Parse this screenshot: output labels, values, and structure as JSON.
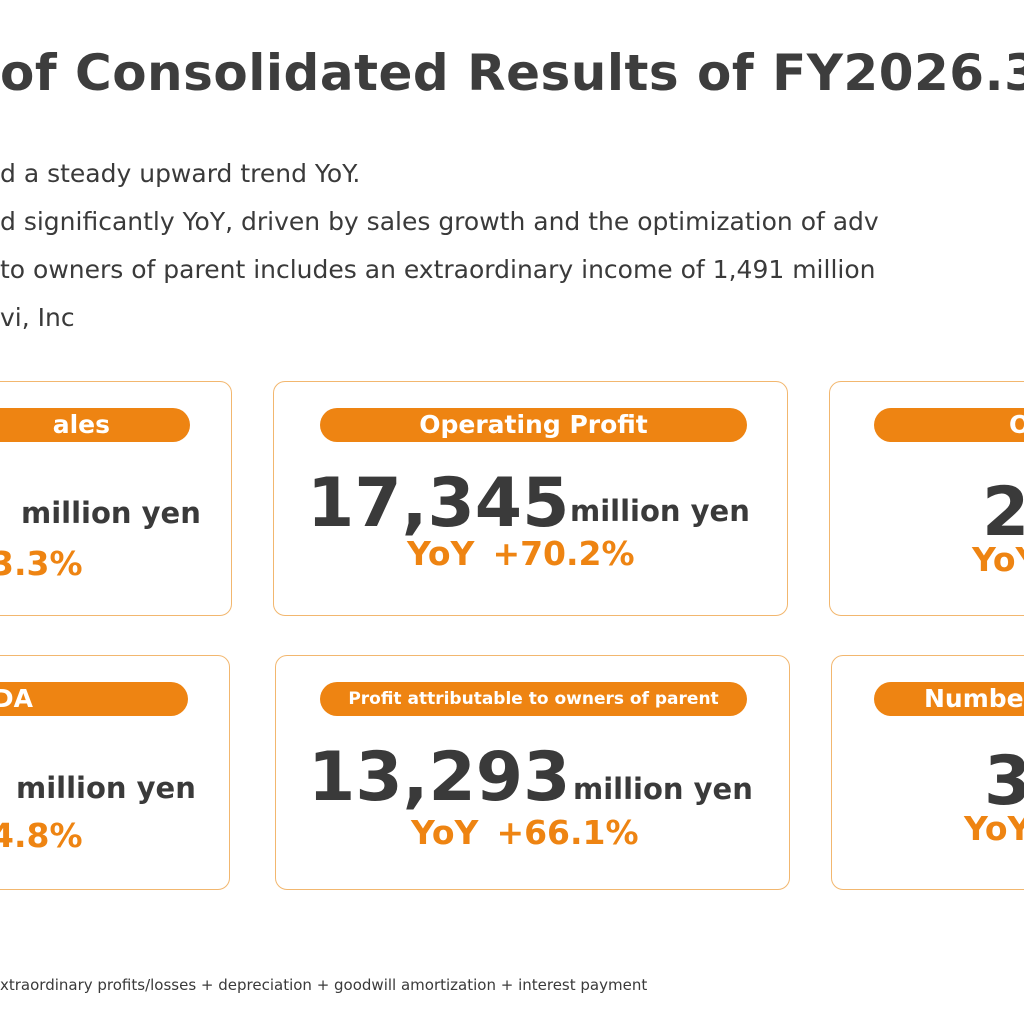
{
  "title": "of Consolidated Results of FY2026.3",
  "bullets": [
    "d a steady upward trend YoY.",
    "d significantly YoY, driven by sales growth and the optimization of adv",
    "to owners of parent includes an extraordinary income of 1,491 million",
    "vi, Inc"
  ],
  "cards": {
    "sales": {
      "label": "ales",
      "value": "",
      "unit": "million yen",
      "yoy_label": "",
      "yoy_value": "3.3%"
    },
    "operating_profit": {
      "label": "Operating Profit",
      "value": "17,345",
      "unit": "million yen",
      "yoy_label": "YoY",
      "yoy_value": "+70.2%"
    },
    "ordinary_profit": {
      "label": "O",
      "value": "2",
      "yoy_label": "YoY"
    },
    "ebitda": {
      "label": "DA",
      "value": "",
      "unit": "million yen",
      "yoy_label": "",
      "yoy_value": "4.8%"
    },
    "profit_parent": {
      "label": "Profit attributable to owners of parent",
      "value": "13,293",
      "unit": "million yen",
      "yoy_label": "YoY",
      "yoy_value": "+66.1%"
    },
    "number": {
      "label": "Numbe",
      "value": "3",
      "yoy_label": "YoY"
    }
  },
  "footnote": "xtraordinary profits/losses + depreciation + goodwill amortization + interest payment",
  "colors": {
    "accent": "#ee8412",
    "card_border": "#f2b76f",
    "text": "#3a3a3a"
  }
}
